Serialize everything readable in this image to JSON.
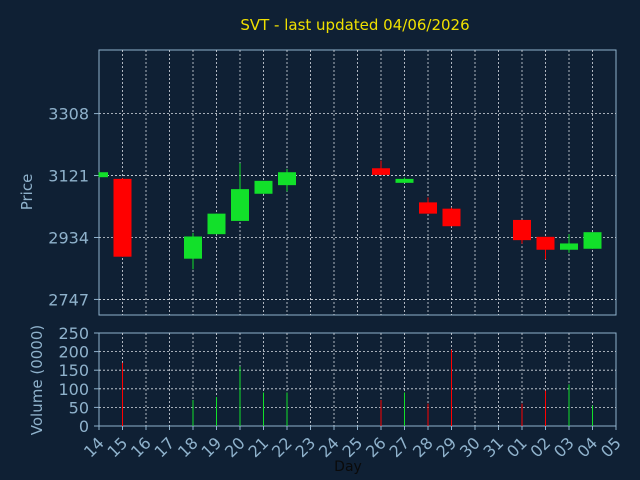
{
  "chart_data": {
    "type": "candlestick",
    "title": "SVT - last updated 04/06/2026",
    "ylabel": "Price",
    "volume_ylabel": "Volume (0000)",
    "xlabel": "Day",
    "x_ticks": [
      "14",
      "15",
      "16",
      "17",
      "18",
      "19",
      "20",
      "21",
      "22",
      "23",
      "24",
      "25",
      "26",
      "27",
      "28",
      "29",
      "30",
      "31",
      "01",
      "02",
      "03",
      "04",
      "05"
    ],
    "price_ticks": [
      2747,
      2934,
      3121,
      3308
    ],
    "price_ylim": [
      2700,
      3500
    ],
    "volume_ticks": [
      0,
      50,
      100,
      150,
      200,
      250
    ],
    "volume_ylim": [
      0,
      250
    ],
    "grid": true,
    "colors": {
      "background": "#0f2034",
      "up": "#12e02a",
      "down": "#ff0000",
      "grid": "#d8dde4",
      "axis": "#8fb2cc",
      "title": "#f0e000"
    },
    "candles": [
      {
        "day": "14",
        "open": 3116,
        "high": 3131,
        "low": 3116,
        "close": 3131
      },
      {
        "day": "15",
        "open": 3111,
        "high": 3113,
        "low": 2876,
        "close": 2876
      },
      {
        "day": "18",
        "open": 2870,
        "high": 2948,
        "low": 2838,
        "close": 2937
      },
      {
        "day": "19",
        "open": 2944,
        "high": 3006,
        "low": 2944,
        "close": 3006
      },
      {
        "day": "20",
        "open": 2984,
        "high": 3158,
        "low": 2984,
        "close": 3080
      },
      {
        "day": "21",
        "open": 3066,
        "high": 3105,
        "low": 3066,
        "close": 3105
      },
      {
        "day": "22",
        "open": 3092,
        "high": 3141,
        "low": 3073,
        "close": 3131
      },
      {
        "day": "26",
        "open": 3143,
        "high": 3166,
        "low": 3123,
        "close": 3123
      },
      {
        "day": "27",
        "open": 3099,
        "high": 3115,
        "low": 3099,
        "close": 3111
      },
      {
        "day": "28",
        "open": 3040,
        "high": 3055,
        "low": 3006,
        "close": 3006
      },
      {
        "day": "29",
        "open": 3021,
        "high": 3024,
        "low": 2968,
        "close": 2968
      },
      {
        "day": "01",
        "open": 2987,
        "high": 2987,
        "low": 2915,
        "close": 2926
      },
      {
        "day": "02",
        "open": 2936,
        "high": 2936,
        "low": 2868,
        "close": 2897
      },
      {
        "day": "03",
        "open": 2897,
        "high": 2944,
        "low": 2888,
        "close": 2916
      },
      {
        "day": "04",
        "open": 2900,
        "high": 2950,
        "low": 2900,
        "close": 2950
      }
    ],
    "volumes": [
      {
        "day": "15",
        "value": 170,
        "direction": "down"
      },
      {
        "day": "18",
        "value": 70,
        "direction": "up"
      },
      {
        "day": "19",
        "value": 78,
        "direction": "up"
      },
      {
        "day": "20",
        "value": 160,
        "direction": "up"
      },
      {
        "day": "21",
        "value": 90,
        "direction": "up"
      },
      {
        "day": "22",
        "value": 90,
        "direction": "up"
      },
      {
        "day": "26",
        "value": 70,
        "direction": "down"
      },
      {
        "day": "27",
        "value": 90,
        "direction": "up"
      },
      {
        "day": "28",
        "value": 60,
        "direction": "down"
      },
      {
        "day": "29",
        "value": 205,
        "direction": "down"
      },
      {
        "day": "01",
        "value": 60,
        "direction": "down"
      },
      {
        "day": "02",
        "value": 95,
        "direction": "down"
      },
      {
        "day": "03",
        "value": 112,
        "direction": "up"
      },
      {
        "day": "04",
        "value": 55,
        "direction": "up"
      }
    ]
  }
}
